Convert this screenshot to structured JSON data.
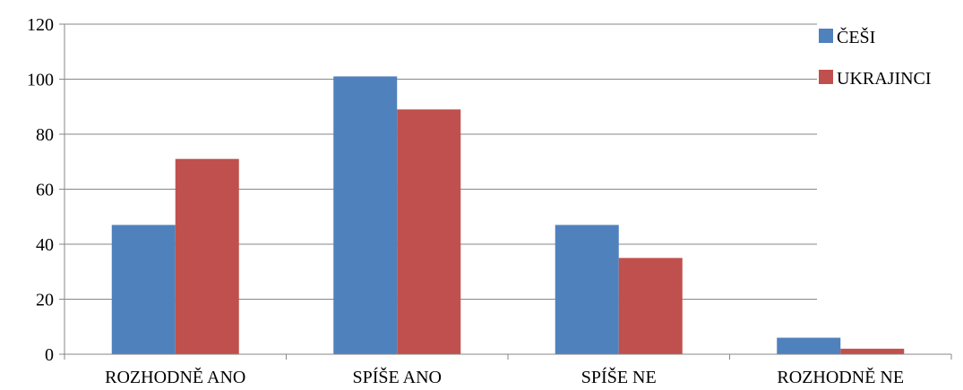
{
  "chart_data": {
    "type": "bar",
    "categories": [
      "ROZHODNĚ ANO",
      "SPÍŠE ANO",
      "SPÍŠE NE",
      "ROZHODNĚ NE"
    ],
    "series": [
      {
        "name": "ČEŠI",
        "values": [
          47,
          101,
          47,
          6
        ],
        "color": "#4f81bd"
      },
      {
        "name": "UKRAJINCI",
        "values": [
          71,
          89,
          35,
          2
        ],
        "color": "#c0504d"
      }
    ],
    "ylim": [
      0,
      120
    ],
    "yticks": [
      0,
      20,
      40,
      60,
      80,
      100,
      120
    ],
    "grid": true,
    "legend_position": "top-right",
    "title": "",
    "xlabel": "",
    "ylabel": ""
  }
}
